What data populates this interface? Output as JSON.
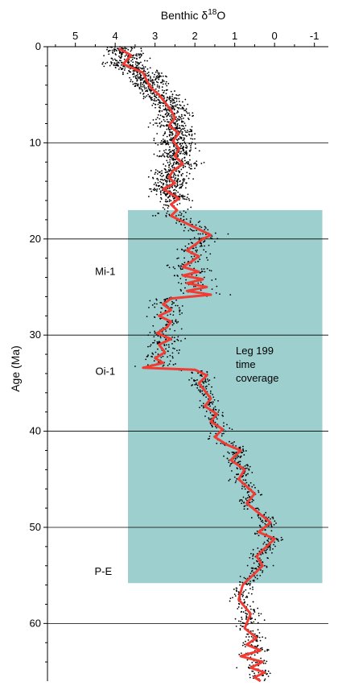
{
  "chart_data": {
    "type": "scatter",
    "title": "Benthic δ18O",
    "title_parts": {
      "prefix": "Benthic δ",
      "superscript": "18",
      "suffix": "O"
    },
    "xlabel": "Benthic δ18O",
    "ylabel": "Age (Ma)",
    "x_axis_position": "top",
    "x_reversed": true,
    "xlim": [
      5.7,
      -1.35
    ],
    "ylim": [
      0,
      66
    ],
    "x_ticks": [
      5,
      4,
      3,
      2,
      1,
      0,
      -1
    ],
    "x_tick_labels": [
      "5",
      "4",
      "3",
      "2",
      "1",
      "0",
      "-1"
    ],
    "y_ticks": [
      0,
      10,
      20,
      30,
      40,
      50,
      60
    ],
    "y_tick_labels": [
      "0",
      "10",
      "20",
      "30",
      "40",
      "50",
      "60"
    ],
    "gridlines_y": [
      10,
      20,
      30,
      40,
      50,
      60
    ],
    "grid": "horizontal lines at each 10 Ma",
    "highlight_region": {
      "label_lines": [
        "Leg 199",
        "time",
        "coverage"
      ],
      "x_range": [
        3.68,
        -1.2
      ],
      "y_range": [
        17,
        55.8
      ],
      "color": "#9ecfcf"
    },
    "annotations": [
      {
        "text": "Mi-1",
        "x": 4.25,
        "y": 23.4
      },
      {
        "text": "Oi-1",
        "x": 4.25,
        "y": 33.8
      },
      {
        "text": "P-E",
        "x": 4.3,
        "y": 54.6
      }
    ],
    "series": [
      {
        "type": "scatter",
        "color": "#000000",
        "description_points": "raw data points; values follow the smoothed curve with scatter"
      },
      {
        "type": "line",
        "color": "#f03c32",
        "x": [
          3.9,
          3.6,
          3.8,
          3.3,
          3.2,
          3.1,
          2.9,
          2.75,
          2.6,
          2.5,
          2.65,
          2.4,
          2.55,
          2.4,
          2.5,
          2.3,
          2.55,
          2.65,
          2.5,
          2.8,
          2.6,
          2.4,
          2.6,
          2.45,
          2.6,
          2.3,
          2.0,
          1.8,
          1.6,
          1.8,
          2.0,
          2.2,
          1.9,
          2.1,
          2.3,
          1.9,
          2.3,
          1.8,
          2.2,
          1.7,
          2.2,
          1.6,
          2.6,
          2.8,
          2.6,
          2.9,
          2.6,
          2.7,
          2.95,
          2.6,
          2.9,
          2.75,
          3.0,
          2.8,
          3.3,
          2.0,
          1.7,
          1.9,
          1.75,
          1.6,
          1.75,
          1.45,
          1.6,
          1.3,
          1.5,
          1.2,
          0.85,
          1.1,
          0.75,
          0.9,
          0.5,
          0.7,
          0.4,
          0.1,
          0.4,
          0.0,
          0.2,
          0.45,
          0.3,
          0.8,
          0.9,
          0.6,
          0.75,
          0.45,
          0.7,
          0.35,
          0.85,
          0.3,
          0.6,
          0.25,
          0.5,
          0.35
        ],
        "y": [
          0.2,
          0.9,
          1.8,
          2.7,
          3.6,
          4.3,
          5.0,
          5.8,
          6.6,
          7.4,
          8.2,
          9.0,
          9.8,
          10.6,
          11.4,
          12.2,
          12.9,
          13.6,
          14.2,
          14.8,
          15.3,
          15.8,
          16.4,
          17.0,
          17.6,
          18.2,
          18.8,
          19.2,
          19.6,
          20.0,
          20.6,
          21.2,
          21.8,
          22.4,
          22.9,
          23.4,
          23.8,
          24.2,
          24.6,
          25.0,
          25.4,
          25.8,
          26.2,
          26.8,
          27.4,
          28.0,
          28.6,
          29.2,
          29.8,
          30.4,
          31.0,
          31.8,
          32.4,
          32.9,
          33.4,
          33.6,
          34.2,
          35.0,
          35.8,
          36.6,
          37.4,
          38.2,
          39.0,
          39.8,
          40.6,
          41.4,
          42.0,
          43.0,
          44.0,
          45.0,
          46.5,
          47.5,
          48.5,
          49.5,
          50.5,
          51.2,
          52.0,
          53.0,
          54.0,
          56.0,
          57.5,
          59.0,
          60.5,
          61.5,
          62.2,
          62.8,
          63.4,
          64.0,
          64.6,
          65.1,
          65.6,
          66.0
        ]
      }
    ]
  }
}
